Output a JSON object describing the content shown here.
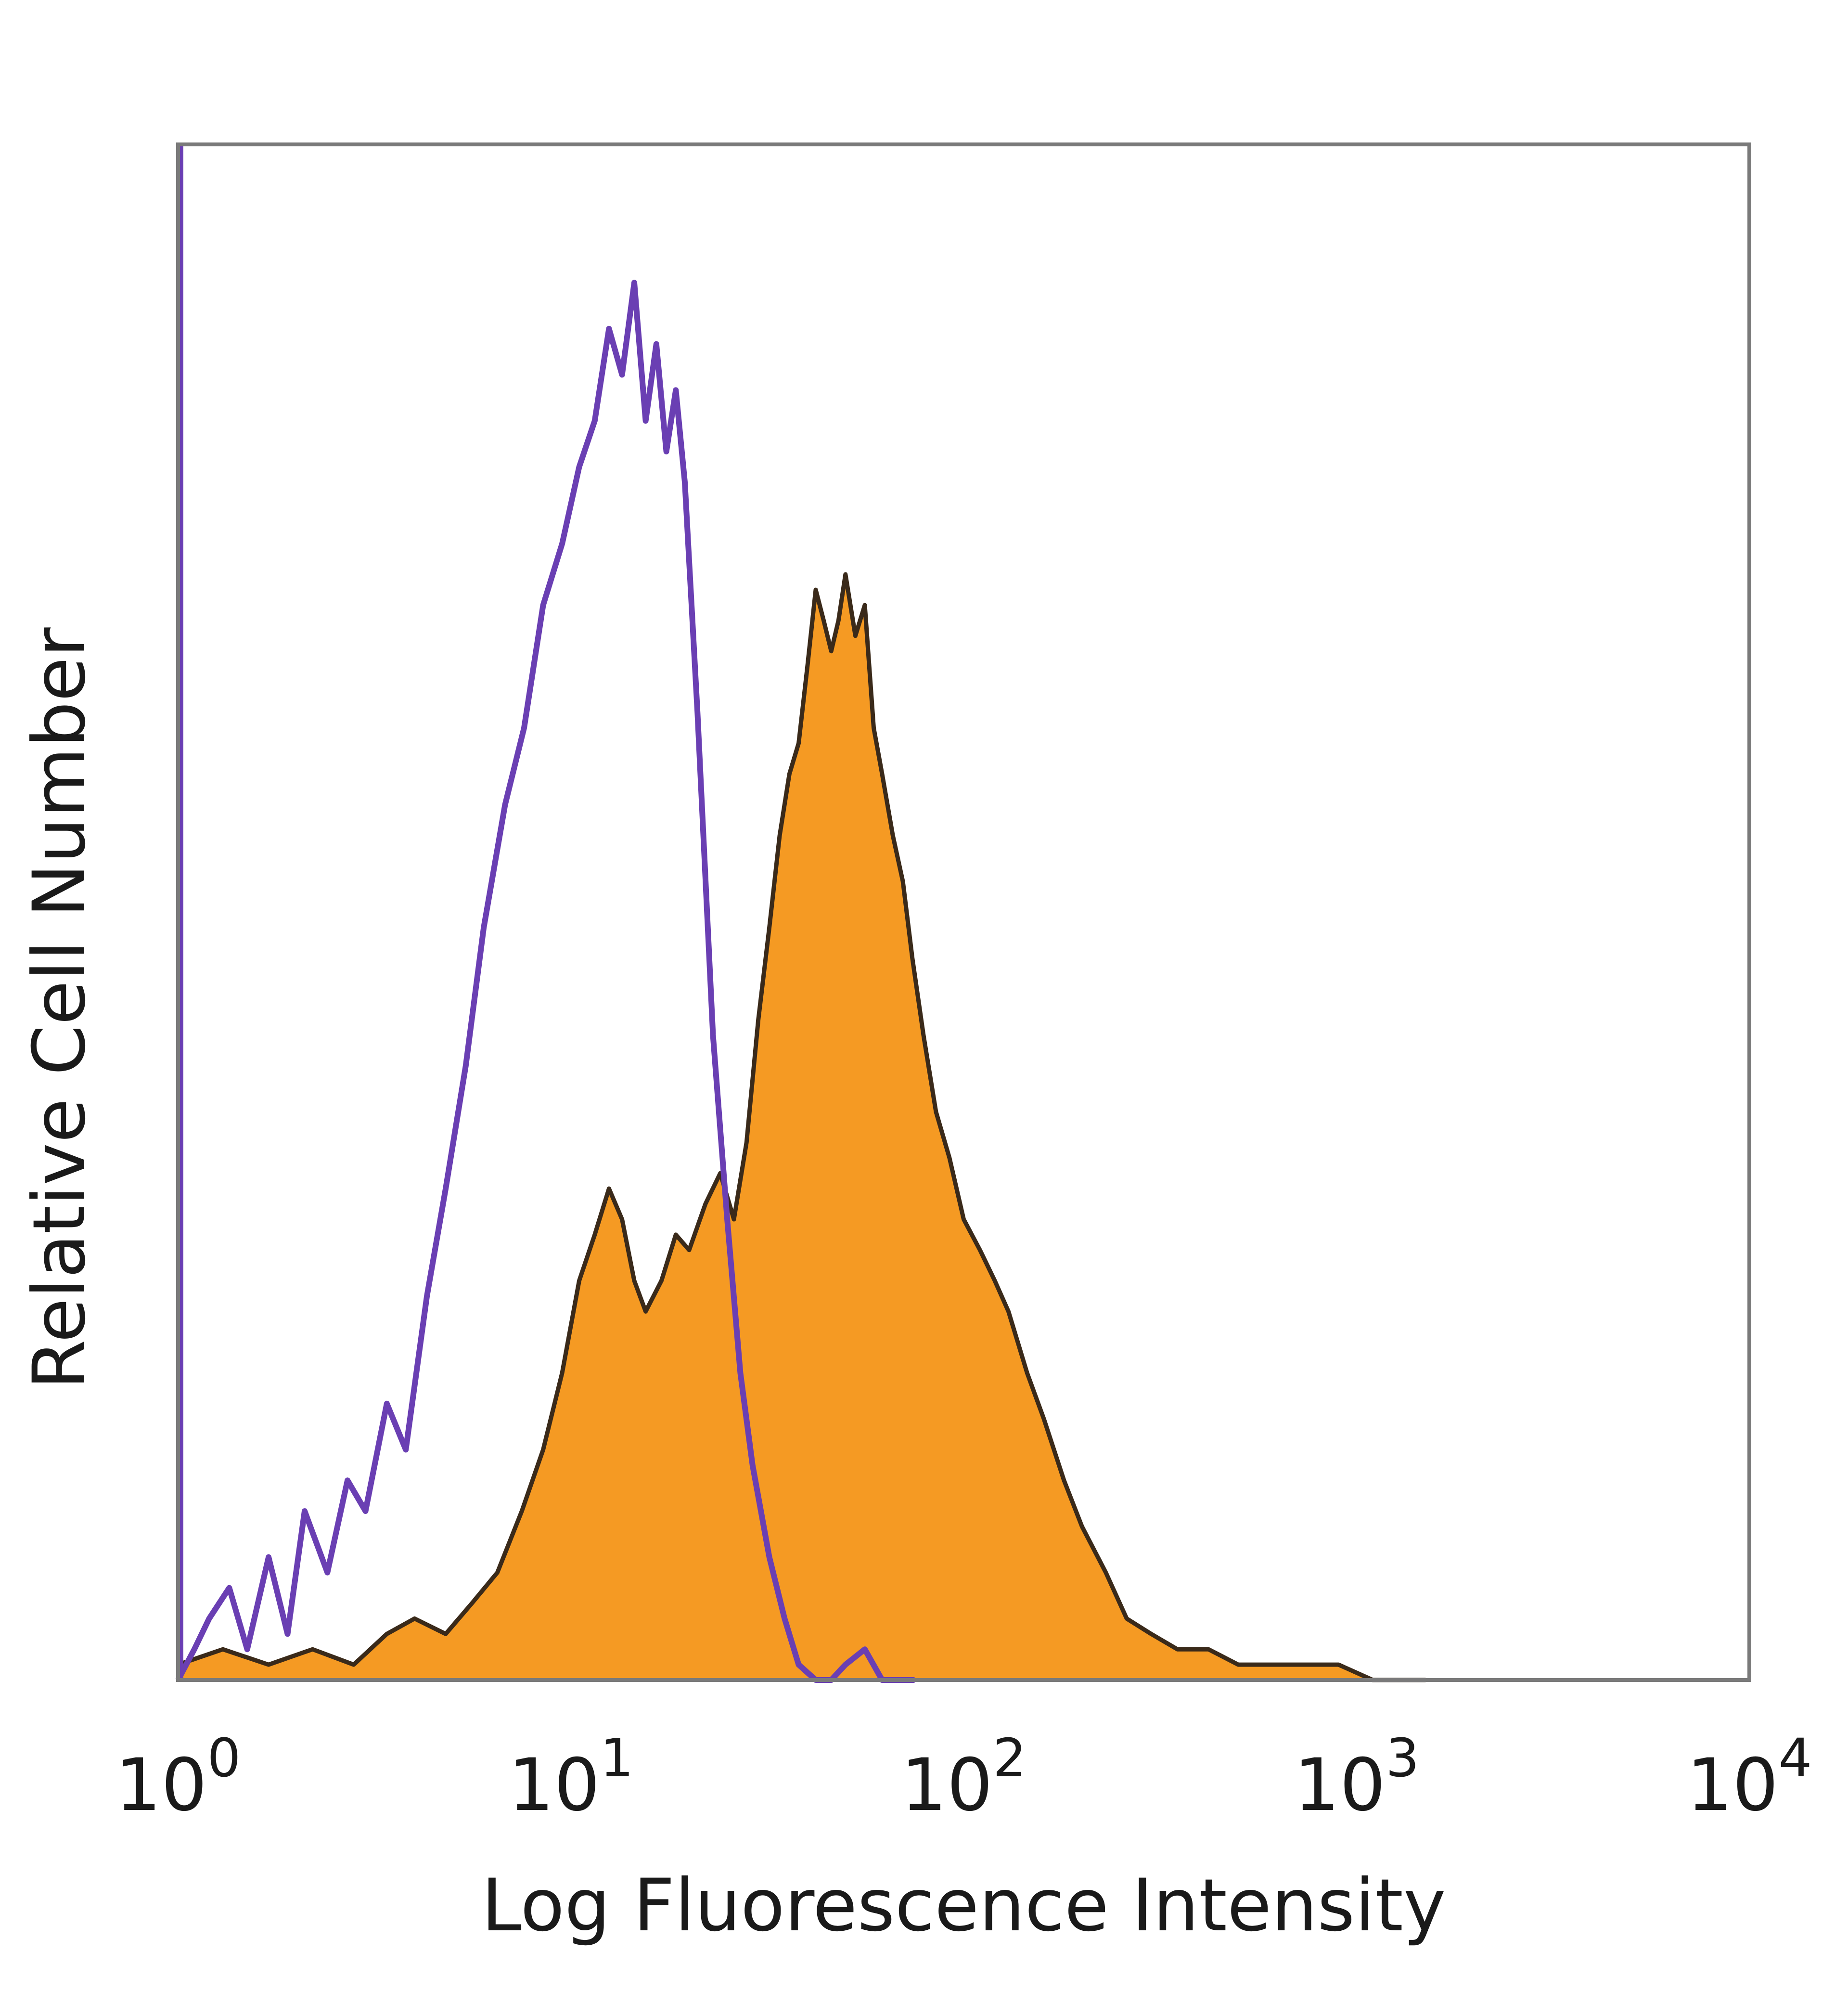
{
  "chart_data": {
    "type": "area",
    "xlabel": "Log Fluorescence Intensity",
    "ylabel": "Relative Cell Number",
    "x_scale": "log",
    "xlim": [
      1,
      10000
    ],
    "ylim": [
      0,
      100
    ],
    "x_ticks": [
      {
        "value": 1,
        "base": "10",
        "exp": "0"
      },
      {
        "value": 10,
        "base": "10",
        "exp": "1"
      },
      {
        "value": 100,
        "base": "10",
        "exp": "2"
      },
      {
        "value": 1000,
        "base": "10",
        "exp": "3"
      },
      {
        "value": 10000,
        "base": "10",
        "exp": "4"
      }
    ],
    "grid": false,
    "legend": "none",
    "series": [
      {
        "style": "outline",
        "color": "#6a3fb3",
        "x": [
          1.0,
          1.1,
          1.2,
          1.35,
          1.5,
          1.7,
          1.9,
          2.1,
          2.4,
          2.7,
          3.0,
          3.4,
          3.8,
          4.3,
          4.8,
          5.4,
          6.0,
          6.8,
          7.6,
          8.5,
          9.5,
          10.5,
          11.5,
          12.5,
          13.5,
          14.5,
          15.5,
          16.5,
          17.5,
          18.5,
          19.5,
          21,
          23,
          25,
          27,
          29,
          32,
          35,
          38,
          42,
          46,
          50,
          56,
          62,
          68,
          75
        ],
        "y": [
          0,
          2,
          4,
          6,
          2,
          8,
          3,
          11,
          7,
          13,
          11,
          18,
          15,
          25,
          32,
          40,
          49,
          57,
          62,
          70,
          74,
          79,
          82,
          88,
          85,
          91,
          82,
          87,
          80,
          84,
          78,
          63,
          42,
          30,
          20,
          14,
          8,
          4,
          1,
          0,
          0,
          1,
          2,
          0,
          0,
          0
        ]
      },
      {
        "style": "filled",
        "color": "#f59a23",
        "stroke": "#3a2a1a",
        "x": [
          1.0,
          1.3,
          1.7,
          2.2,
          2.8,
          3.4,
          4.0,
          4.8,
          5.6,
          6.5,
          7.5,
          8.5,
          9.5,
          10.5,
          11.5,
          12.5,
          13.5,
          14.5,
          15.5,
          17,
          18.5,
          20,
          22,
          24,
          26,
          28,
          30,
          32,
          34,
          36,
          38,
          40,
          42,
          44,
          46,
          48,
          50,
          53,
          56,
          59,
          62,
          66,
          70,
          74,
          79,
          85,
          92,
          100,
          110,
          120,
          130,
          145,
          160,
          180,
          200,
          230,
          260,
          300,
          350,
          420,
          500,
          600,
          750,
          900,
          1100,
          1300,
          1500
        ],
        "y": [
          1,
          2,
          1,
          2,
          1,
          3,
          4,
          3,
          5,
          7,
          11,
          15,
          20,
          26,
          29,
          32,
          30,
          26,
          24,
          26,
          29,
          28,
          31,
          33,
          30,
          35,
          43,
          49,
          55,
          59,
          61,
          66,
          71,
          69,
          67,
          69,
          72,
          68,
          70,
          62,
          59,
          55,
          52,
          47,
          42,
          37,
          34,
          30,
          28,
          26,
          24,
          20,
          17,
          13,
          10,
          7,
          4,
          3,
          2,
          2,
          1,
          1,
          1,
          1,
          0,
          0,
          0
        ]
      }
    ]
  }
}
